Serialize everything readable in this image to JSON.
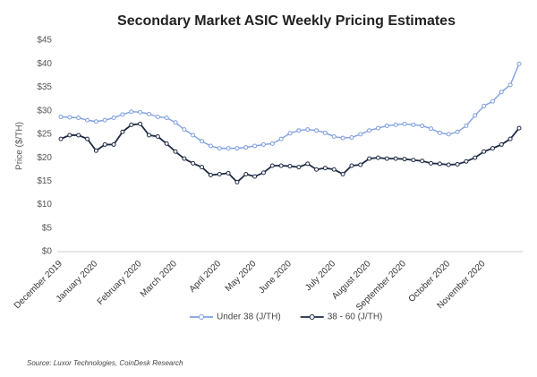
{
  "chart_data": {
    "type": "line",
    "title": "Secondary Market ASIC Weekly Pricing Estimates",
    "y_label": "Price ($/TH)",
    "source": "Source: Luxor Technologies, CoinDesk Research",
    "categories": [
      "December 2019",
      null,
      null,
      null,
      "January 2020",
      null,
      null,
      null,
      null,
      "February 2020",
      null,
      null,
      null,
      "March 2020",
      null,
      null,
      null,
      null,
      "April 2020",
      null,
      null,
      null,
      "May 2020",
      null,
      null,
      null,
      "June 2020",
      null,
      null,
      null,
      null,
      "July 2020",
      null,
      null,
      null,
      "August 2020",
      null,
      null,
      null,
      "September 2020",
      null,
      null,
      null,
      null,
      "October 2020",
      null,
      null,
      null,
      "November 2020",
      null,
      null,
      null,
      null
    ],
    "series": [
      {
        "name": "Under 38 (J/TH)",
        "color": "#7f9ee0",
        "values": [
          28.7,
          28.6,
          28.5,
          28.0,
          27.7,
          28.0,
          28.5,
          29.2,
          29.8,
          29.7,
          29.3,
          28.7,
          28.5,
          27.5,
          26.0,
          24.8,
          23.5,
          22.5,
          22.0,
          22.0,
          22.0,
          22.2,
          22.5,
          22.8,
          23.0,
          24.0,
          25.2,
          25.8,
          26.0,
          25.8,
          25.3,
          24.5,
          24.2,
          24.3,
          25.0,
          25.8,
          26.3,
          26.8,
          27.0,
          27.2,
          27.0,
          26.8,
          26.2,
          25.3,
          25.0,
          25.5,
          26.8,
          29.0,
          31.0,
          32.0,
          34.0,
          35.5,
          40.0
        ]
      },
      {
        "name": "38 - 60 (J/TH)",
        "color": "#1f2a44",
        "values": [
          24.0,
          24.8,
          24.8,
          24.0,
          21.5,
          22.8,
          22.8,
          25.5,
          27.0,
          27.2,
          24.8,
          24.5,
          23.0,
          21.3,
          19.8,
          18.8,
          18.0,
          16.3,
          16.5,
          16.7,
          14.8,
          16.5,
          16.0,
          16.8,
          18.3,
          18.3,
          18.2,
          18.0,
          18.7,
          17.5,
          17.8,
          17.5,
          16.5,
          18.3,
          18.5,
          19.8,
          20.0,
          19.8,
          19.8,
          19.7,
          19.5,
          19.3,
          18.8,
          18.7,
          18.5,
          18.6,
          19.2,
          20.0,
          21.3,
          22.0,
          22.8,
          24.0,
          26.3
        ]
      }
    ],
    "ylim": [
      0,
      45
    ],
    "yticks": [
      {
        "value": 0,
        "label": "$0"
      },
      {
        "value": 5,
        "label": "$5"
      },
      {
        "value": 10,
        "label": "$10"
      },
      {
        "value": 15,
        "label": "$15"
      },
      {
        "value": 20,
        "label": "$20"
      },
      {
        "value": 25,
        "label": "$25"
      },
      {
        "value": 30,
        "label": "$30"
      },
      {
        "value": 35,
        "label": "$35"
      },
      {
        "value": 40,
        "label": "$40"
      },
      {
        "value": 45,
        "label": "$45"
      }
    ],
    "grid": false
  }
}
